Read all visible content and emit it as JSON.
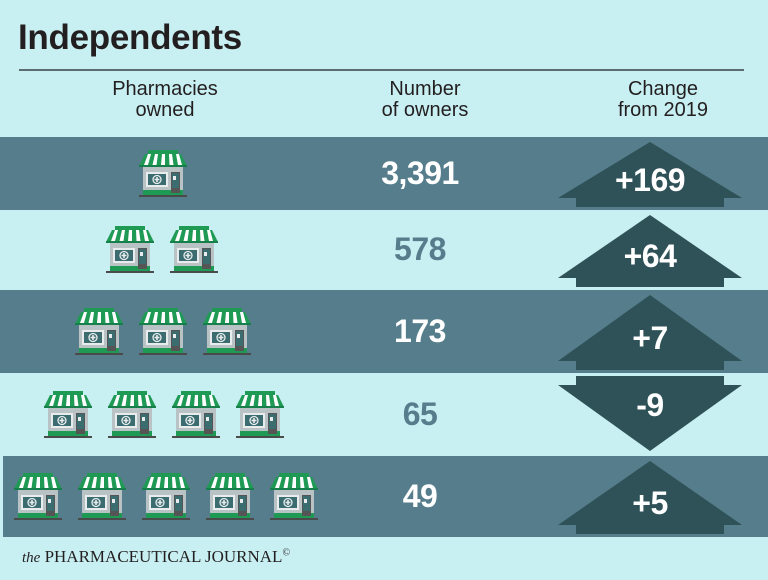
{
  "title": "Independents",
  "columns": {
    "pharmacies_owned": [
      "Pharmacies",
      "owned"
    ],
    "number_of_owners": [
      "Number",
      "of owners"
    ],
    "change": [
      "Change",
      "from 2019"
    ]
  },
  "rows": [
    {
      "pharmacies": 1,
      "owners": "3,391",
      "change": "+169",
      "direction": "up"
    },
    {
      "pharmacies": 2,
      "owners": "578",
      "change": "+64",
      "direction": "up"
    },
    {
      "pharmacies": 3,
      "owners": "173",
      "change": "+7",
      "direction": "up"
    },
    {
      "pharmacies": 4,
      "owners": "65",
      "change": "-9",
      "direction": "down"
    },
    {
      "pharmacies": 5,
      "owners": "49",
      "change": "+5",
      "direction": "up"
    }
  ],
  "footer": {
    "the": "the",
    "brand": "PHARMACEUTICAL JOURNAL",
    "mark": "©"
  },
  "colors": {
    "background": "#c8eff2",
    "band_dark": "#567d8b",
    "arrow": "#2e5257",
    "awning_green": "#1e9a55",
    "title_text": "#231f20"
  },
  "chart_data": {
    "type": "table",
    "title": "Independents",
    "columns": [
      "Pharmacies owned",
      "Number of owners",
      "Change from 2019"
    ],
    "categories": [
      "1",
      "2",
      "3",
      "4",
      "5"
    ],
    "series": [
      {
        "name": "Number of owners",
        "values": [
          3391,
          578,
          173,
          65,
          49
        ]
      },
      {
        "name": "Change from 2019",
        "values": [
          169,
          64,
          7,
          -9,
          5
        ]
      }
    ],
    "source": "the PHARMACEUTICAL JOURNAL"
  }
}
